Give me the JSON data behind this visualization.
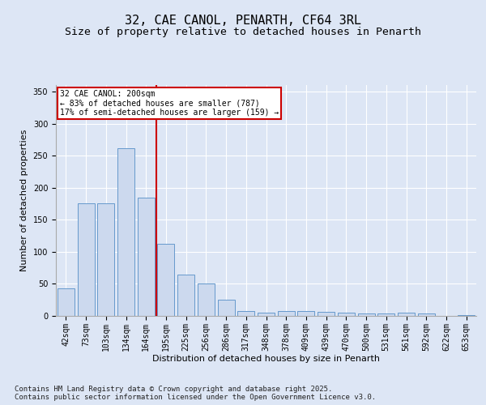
{
  "title": "32, CAE CANOL, PENARTH, CF64 3RL",
  "subtitle": "Size of property relative to detached houses in Penarth",
  "xlabel": "Distribution of detached houses by size in Penarth",
  "ylabel": "Number of detached properties",
  "categories": [
    "42sqm",
    "73sqm",
    "103sqm",
    "134sqm",
    "164sqm",
    "195sqm",
    "225sqm",
    "256sqm",
    "286sqm",
    "317sqm",
    "348sqm",
    "378sqm",
    "409sqm",
    "439sqm",
    "470sqm",
    "500sqm",
    "531sqm",
    "561sqm",
    "592sqm",
    "622sqm",
    "653sqm"
  ],
  "values": [
    43,
    175,
    175,
    262,
    185,
    113,
    64,
    51,
    25,
    8,
    5,
    8,
    8,
    6,
    5,
    4,
    4,
    5,
    4,
    0,
    1
  ],
  "bar_color": "#ccd9ee",
  "bar_edge_color": "#6699cc",
  "vline_x": 4.5,
  "vline_color": "#cc0000",
  "annotation_text": "32 CAE CANOL: 200sqm\n← 83% of detached houses are smaller (787)\n17% of semi-detached houses are larger (159) →",
  "annotation_box_color": "#ffffff",
  "annotation_box_edge": "#cc0000",
  "background_color": "#dde6f5",
  "plot_bg_color": "#dde6f5",
  "footer_text": "Contains HM Land Registry data © Crown copyright and database right 2025.\nContains public sector information licensed under the Open Government Licence v3.0.",
  "ylim": [
    0,
    360
  ],
  "yticks": [
    0,
    50,
    100,
    150,
    200,
    250,
    300,
    350
  ],
  "title_fontsize": 11,
  "subtitle_fontsize": 9.5,
  "tick_fontsize": 7,
  "label_fontsize": 8,
  "footer_fontsize": 6.5
}
